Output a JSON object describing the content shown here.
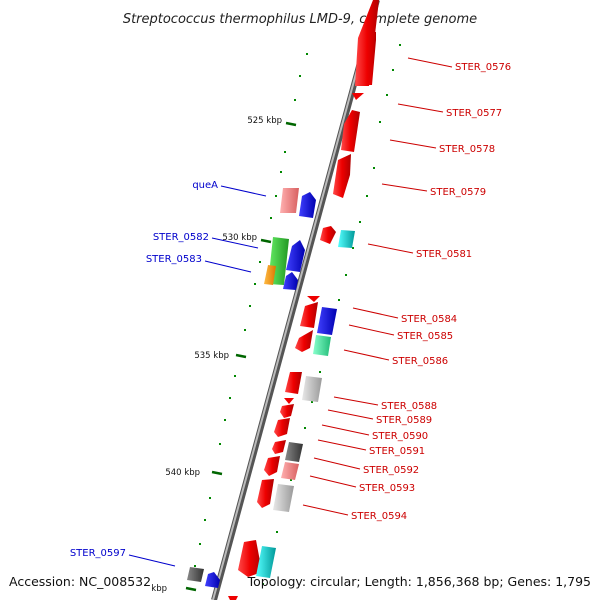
{
  "title": "Streptococcus thermophilus LMD-9, complete genome",
  "footer": {
    "accession": "Accession: NC_008532",
    "info": "Topology: circular; Length: 1,856,368 bp; Genes: 1,795"
  },
  "scale_labels": [
    "525 kbp",
    "530 kbp",
    "535 kbp",
    "540 kbp",
    "kbp"
  ],
  "right_labels": [
    "STER_0576",
    "STER_0577",
    "STER_0578",
    "STER_0579",
    "STER_0581",
    "STER_0584",
    "STER_0585",
    "STER_0586",
    "STER_0588",
    "STER_0589",
    "STER_0590",
    "STER_0591",
    "STER_0592",
    "STER_0593",
    "STER_0594"
  ],
  "left_labels": [
    "queA",
    "STER_0582",
    "STER_0583",
    "STER_0597"
  ],
  "colors": {
    "red": "#ee0000",
    "pink": "#f08080",
    "blue": "#0000ee",
    "cyan": "#00cccc",
    "green": "#33cc33",
    "orange": "#ff9900",
    "mint": "#33ee99",
    "gray": "#555555",
    "lightgray": "#bbbbbb",
    "tick": "#006600",
    "backbone": "#888888"
  }
}
